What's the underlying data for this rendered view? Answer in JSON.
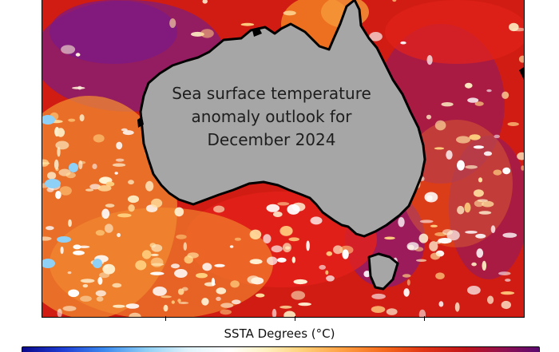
{
  "map": {
    "overlay_title_lines": [
      "Sea surface temperature",
      "anomaly outlook for",
      "December 2024"
    ]
  },
  "colorbar": {
    "label": "SSTA Degrees (°C)"
  },
  "colors": {
    "land": "#a6a6a6",
    "warm_anomaly": "#d21f12",
    "strong_warm_anomaly": "#7a1a8a",
    "near_normal": "#ffffff",
    "cool_anomaly": "#8fd0f6"
  }
}
